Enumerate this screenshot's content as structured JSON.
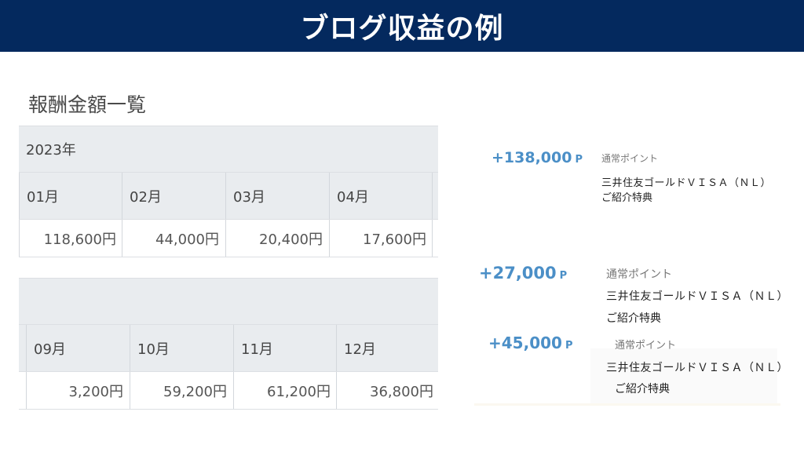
{
  "header": {
    "title": "ブログ収益の例"
  },
  "section_title": "報酬金額一覧",
  "table1": {
    "year": "2023年",
    "months": [
      "01月",
      "02月",
      "03月",
      "04月"
    ],
    "amounts": [
      "118,600円",
      "44,000円",
      "20,400円",
      "17,600円"
    ]
  },
  "table2": {
    "year": "",
    "months": [
      "09月",
      "10月",
      "11月",
      "12月"
    ],
    "amounts": [
      "3,200円",
      "59,200円",
      "61,200円",
      "36,800円"
    ]
  },
  "points": [
    {
      "amount": "+138,000",
      "unit": "P",
      "type": "通常ポイント",
      "card": "三井住友ゴールドＶＩＳＡ（ＮＬ）",
      "note": "ご紹介特典"
    },
    {
      "amount": "+27,000",
      "unit": "P",
      "type": "通常ポイント",
      "card": "三井住友ゴールドＶＩＳＡ（ＮＬ）",
      "note": "ご紹介特典"
    },
    {
      "amount": "+45,000",
      "unit": "P",
      "type": "通常ポイント",
      "card": "三井住友ゴールドＶＩＳＡ（ＮＬ）",
      "note": "ご紹介特典"
    }
  ],
  "colors": {
    "header_bg": "#04295e",
    "point_blue": "#4b8fc7",
    "table_header_bg": "#e9ecef"
  }
}
